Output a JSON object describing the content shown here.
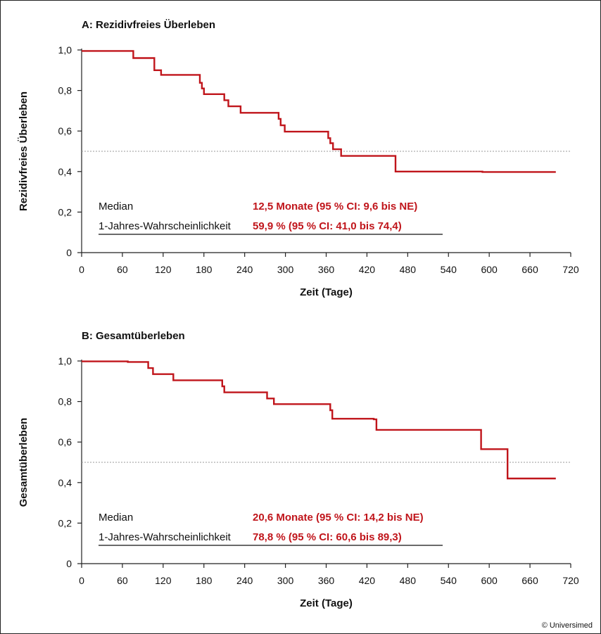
{
  "colors": {
    "curve": "#c0151b",
    "axis": "#222222",
    "reference": "#999999"
  },
  "copyright": "© Universimed",
  "chart_data": [
    {
      "type": "line",
      "step": true,
      "title": "A: Rezidivfreies Überleben",
      "xlabel": "Zeit (Tage)",
      "ylabel": "Rezidivfreies Überleben",
      "xlim": [
        0,
        720
      ],
      "ylim": [
        0,
        1
      ],
      "xticks": [
        0,
        60,
        120,
        180,
        240,
        300,
        360,
        420,
        480,
        540,
        600,
        660,
        720
      ],
      "xtick_labels": [
        "0",
        "60",
        "120",
        "180",
        "240",
        "300",
        "360",
        "420",
        "480",
        "540",
        "600",
        "660",
        "720"
      ],
      "yticks": [
        0,
        0.2,
        0.4,
        0.6,
        0.8,
        1.0
      ],
      "ytick_labels": [
        "0",
        "0,2",
        "0,4",
        "0,6",
        "0,8",
        "1,0"
      ],
      "reference_line": 0.5,
      "series": [
        {
          "x": [
            0,
            76,
            107,
            117,
            174,
            177,
            180,
            210,
            216,
            234,
            290,
            293,
            299,
            363,
            366,
            370,
            382,
            462,
            590,
            698
          ],
          "y": [
            0.995,
            0.96,
            0.9,
            0.877,
            0.838,
            0.81,
            0.782,
            0.752,
            0.722,
            0.69,
            0.66,
            0.628,
            0.597,
            0.565,
            0.54,
            0.51,
            0.477,
            0.4,
            0.398,
            0.398
          ]
        }
      ],
      "annotations": {
        "median_label": "Median",
        "median_value": "12,5 Monate (95 % CI: 9,6 bis NE)",
        "oneyear_label": "1-Jahres-Wahrscheinlichkeit",
        "oneyear_value": "59,9 % (95 % CI: 41,0 bis 74,4)"
      }
    },
    {
      "type": "line",
      "step": true,
      "title": "B: Gesamtüberleben",
      "xlabel": "Zeit (Tage)",
      "ylabel": "Gesamtüberleben",
      "xlim": [
        0,
        720
      ],
      "ylim": [
        0,
        1
      ],
      "xticks": [
        0,
        60,
        120,
        180,
        240,
        300,
        360,
        420,
        480,
        540,
        600,
        660,
        720
      ],
      "xtick_labels": [
        "0",
        "60",
        "120",
        "180",
        "240",
        "300",
        "360",
        "420",
        "480",
        "540",
        "600",
        "660",
        "720"
      ],
      "yticks": [
        0,
        0.2,
        0.4,
        0.6,
        0.8,
        1.0
      ],
      "ytick_labels": [
        "0",
        "0,2",
        "0,4",
        "0,6",
        "0,8",
        "1,0"
      ],
      "reference_line": 0.5,
      "series": [
        {
          "x": [
            0,
            68,
            98,
            105,
            135,
            207,
            210,
            273,
            283,
            366,
            369,
            430,
            434,
            588,
            627,
            698
          ],
          "y": [
            0.998,
            0.995,
            0.965,
            0.935,
            0.905,
            0.875,
            0.845,
            0.815,
            0.787,
            0.757,
            0.715,
            0.712,
            0.66,
            0.565,
            0.42,
            0.42
          ]
        }
      ],
      "annotations": {
        "median_label": "Median",
        "median_value": "20,6 Monate (95 % CI: 14,2 bis NE)",
        "oneyear_label": "1-Jahres-Wahrscheinlichkeit",
        "oneyear_value": "78,8 % (95 % CI: 60,6 bis 89,3)"
      }
    }
  ]
}
